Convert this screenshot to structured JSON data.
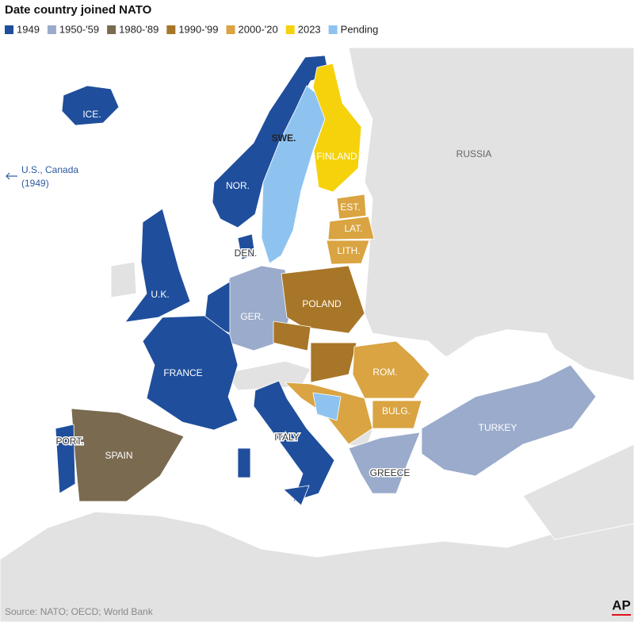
{
  "title": "Date country joined NATO",
  "legend": [
    {
      "label": "1949",
      "color": "#1f4e9c"
    },
    {
      "label": "1950-'59",
      "color": "#9aabcb"
    },
    {
      "label": "1980-'89",
      "color": "#7a6a50"
    },
    {
      "label": "1990-'99",
      "color": "#a87628"
    },
    {
      "label": "2000-'20",
      "color": "#d9a441"
    },
    {
      "label": "2023",
      "color": "#f5d20c"
    },
    {
      "label": "Pending",
      "color": "#8ec3f0"
    }
  ],
  "labels": [
    "ICE.",
    "NOR.",
    "SWE.",
    "FINLAND",
    "RUSSIA",
    "EST.",
    "LAT.",
    "LITH.",
    "DEN.",
    "U.K.",
    "GER.",
    "POLAND",
    "FRANCE",
    "ROM.",
    "BULG.",
    "PORT.",
    "SPAIN",
    "ITALY",
    "TURKEY",
    "GREECE"
  ],
  "note": {
    "line1": "U.S., Canada",
    "line2": "(1949)"
  },
  "source": "Source: NATO; OECD; World Bank",
  "logo": "AP"
}
